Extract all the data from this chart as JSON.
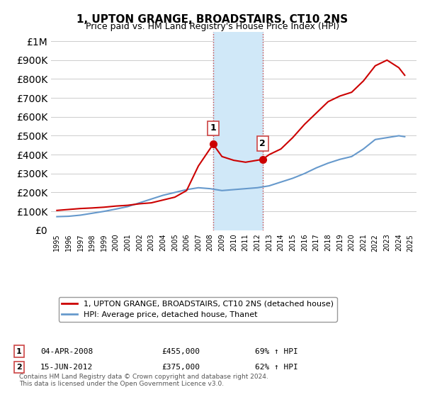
{
  "title": "1, UPTON GRANGE, BROADSTAIRS, CT10 2NS",
  "subtitle": "Price paid vs. HM Land Registry's House Price Index (HPI)",
  "legend_line1": "1, UPTON GRANGE, BROADSTAIRS, CT10 2NS (detached house)",
  "legend_line2": "HPI: Average price, detached house, Thanet",
  "footer": "Contains HM Land Registry data © Crown copyright and database right 2024.\nThis data is licensed under the Open Government Licence v3.0.",
  "annotation1_label": "1",
  "annotation1_date": "04-APR-2008",
  "annotation1_price": "£455,000",
  "annotation1_hpi": "69% ↑ HPI",
  "annotation2_label": "2",
  "annotation2_date": "15-JUN-2012",
  "annotation2_price": "£375,000",
  "annotation2_hpi": "62% ↑ HPI",
  "shade_start": 2008.25,
  "shade_end": 2012.45,
  "point1_x": 2008.25,
  "point1_y": 455000,
  "point2_x": 2012.45,
  "point2_y": 375000,
  "red_color": "#cc0000",
  "blue_color": "#6699cc",
  "shade_color": "#d0e8f8",
  "ylim": [
    0,
    1050000
  ],
  "xlim_start": 1994.5,
  "xlim_end": 2025.5,
  "red_x": [
    1995,
    1996,
    1997,
    1998,
    1999,
    2000,
    2001,
    2002,
    2003,
    2004,
    2005,
    2006,
    2007,
    2008.25,
    2009,
    2010,
    2011,
    2012.45,
    2013,
    2014,
    2015,
    2016,
    2017,
    2018,
    2019,
    2020,
    2021,
    2022,
    2023,
    2024,
    2024.5
  ],
  "red_y": [
    105000,
    110000,
    115000,
    118000,
    122000,
    128000,
    132000,
    140000,
    145000,
    160000,
    175000,
    210000,
    340000,
    455000,
    390000,
    370000,
    360000,
    375000,
    400000,
    430000,
    490000,
    560000,
    620000,
    680000,
    710000,
    730000,
    790000,
    870000,
    900000,
    860000,
    820000
  ],
  "blue_x": [
    1995,
    1996,
    1997,
    1998,
    1999,
    2000,
    2001,
    2002,
    2003,
    2004,
    2005,
    2006,
    2007,
    2008,
    2009,
    2010,
    2011,
    2012,
    2013,
    2014,
    2015,
    2016,
    2017,
    2018,
    2019,
    2020,
    2021,
    2022,
    2023,
    2024,
    2024.5
  ],
  "blue_y": [
    72000,
    74000,
    80000,
    90000,
    100000,
    112000,
    125000,
    145000,
    165000,
    185000,
    200000,
    215000,
    225000,
    220000,
    210000,
    215000,
    220000,
    225000,
    235000,
    255000,
    275000,
    300000,
    330000,
    355000,
    375000,
    390000,
    430000,
    480000,
    490000,
    500000,
    495000
  ]
}
